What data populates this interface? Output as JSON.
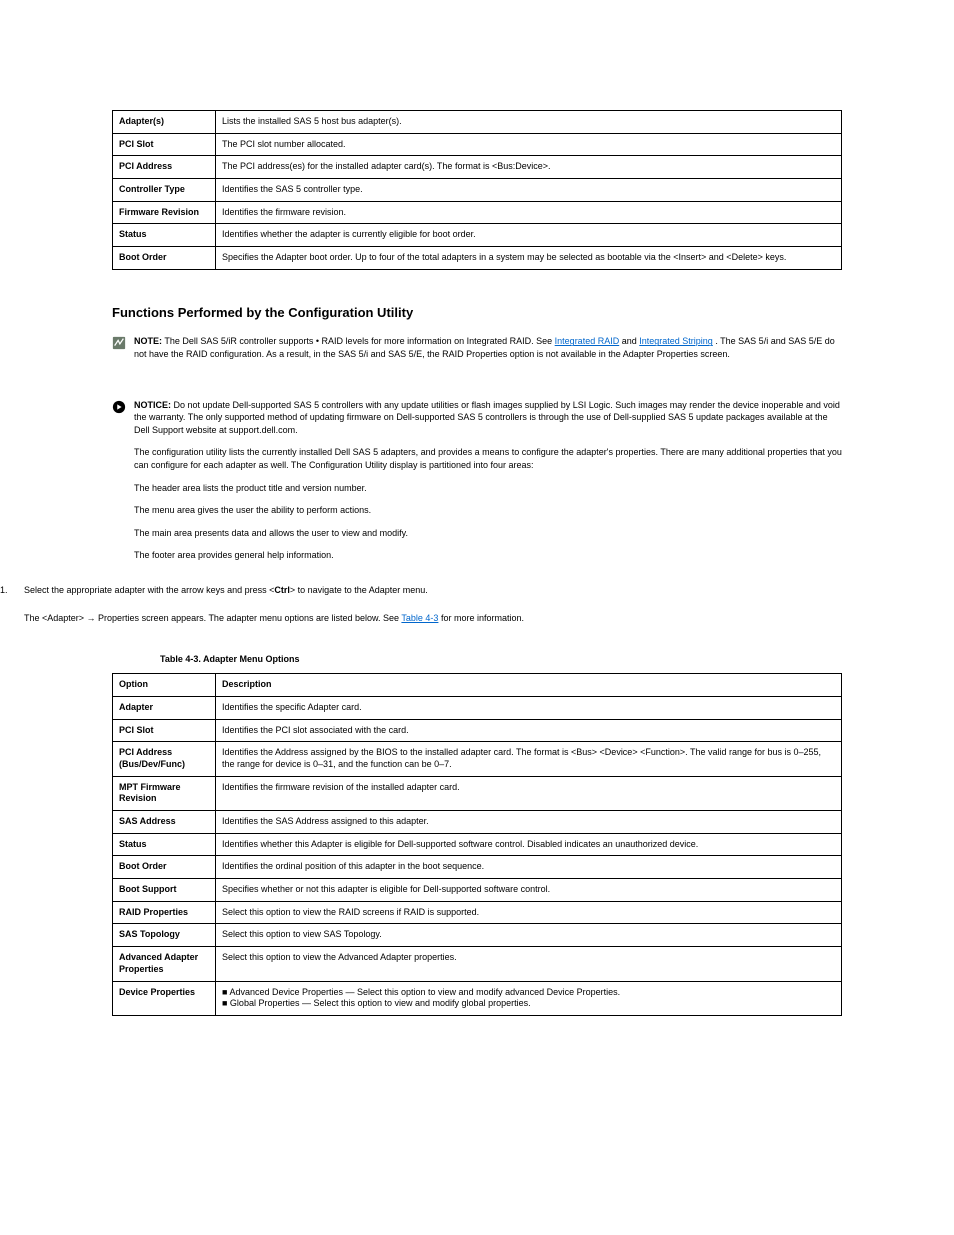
{
  "colors": {
    "link": "#0066cc",
    "text": "#000000",
    "border": "#000000",
    "background": "#ffffff"
  },
  "top_table": {
    "rows": [
      {
        "left": "Adapter(s)",
        "right": "Lists the installed SAS 5 host bus adapter(s)."
      },
      {
        "left": "PCI Slot",
        "right": "The PCI slot number allocated."
      },
      {
        "left": "PCI Address",
        "right": "The PCI address(es) for the installed adapter card(s). The format is <Bus:Device>."
      },
      {
        "left": "Controller Type",
        "right": "Identifies the SAS 5 controller type."
      },
      {
        "left": "Firmware Revision",
        "right": "Identifies the firmware revision."
      },
      {
        "left": "Status",
        "right": "Identifies whether the adapter is currently eligible for boot order."
      },
      {
        "left": "Boot Order",
        "right": "Specifies the Adapter boot order. Up to four of the total adapters in a system may be selected as bootable via the <Insert> and <Delete> keys."
      }
    ]
  },
  "functions_heading": "Functions Performed by the Configuration Utility",
  "note": {
    "prefix": "NOTE:",
    "before_links": "The Dell SAS 5/iR controller supports • RAID levels for more information on Integrated RAID. See ",
    "link1": "Integrated RAID",
    "mid": " and ",
    "link2": "Integrated Striping",
    "after_links": ". The SAS 5/i and SAS 5/E do not have the RAID configuration. As a result, in the SAS 5/i and SAS 5/E, the RAID Properties option is not available in the Adapter Properties screen."
  },
  "notice_label": "NOTICE:",
  "notice_lines": [
    "Do not update Dell-supported SAS 5 controllers with any update utilities or flash images supplied by LSI Logic. Such images may render the device inoperable and void the warranty. The only supported method of updating firmware on Dell-supported SAS 5 controllers is through the use of Dell-supplied SAS 5 update packages available at the Dell Support website at support.dell.com.",
    "The configuration utility lists the currently installed Dell SAS 5 adapters, and provides a means to configure the adapter's properties. There are many additional properties that you can configure for each adapter as well. The Configuration Utility display is partitioned into four areas:",
    "The header area lists the product title and version number.",
    "The menu area gives the user the ability to perform actions.",
    "The main area presents data and allows the user to view and modify.",
    "The footer area provides general help information."
  ],
  "ol": [
    {
      "n": "1.",
      "text_before": "Select the appropriate adapter with the arrow keys and press <",
      "key": "Ctrl",
      "text_after": "> to navigate to the Adapter menu."
    }
  ],
  "after_ol": {
    "before_link": "The <Adapter> → Properties screen appears. The adapter menu options are listed below. See ",
    "link": "Table 4-3",
    "after_link": " for more information."
  },
  "table_caption": "Table 4-3. Adapter Menu Options",
  "adapter_table": {
    "head_left": "Option",
    "head_right": "Description",
    "rows": [
      {
        "left": "Adapter",
        "right": "Identifies the specific Adapter card."
      },
      {
        "left": "PCI Slot",
        "right": "Identifies the PCI slot associated with the card."
      },
      {
        "left": "PCI Address (Bus/Dev/Func)",
        "right": "Identifies the Address assigned by the BIOS to the installed adapter card. The format is <Bus> <Device> <Function>. The valid range for bus is 0–255, the range for device is 0–31, and the function can be 0–7."
      },
      {
        "left": "MPT Firmware Revision",
        "right": "Identifies the firmware revision of the installed adapter card."
      },
      {
        "left": "SAS Address",
        "right": "Identifies the SAS Address assigned to this adapter."
      },
      {
        "left": "Status",
        "right": "Identifies whether this Adapter is eligible for Dell-supported software control. Disabled indicates an unauthorized device."
      },
      {
        "left": "Boot Order",
        "right": "Identifies the ordinal position of this adapter in the boot sequence."
      },
      {
        "left": "Boot Support",
        "right": "Specifies whether or not this adapter is eligible for Dell-supported software control."
      },
      {
        "left": "RAID Properties",
        "right": "Select this option to view the RAID screens if RAID is supported."
      },
      {
        "left": "SAS Topology",
        "right": "Select this option to view SAS Topology."
      },
      {
        "left": "Advanced Adapter Properties",
        "right": "Select this option to view the Advanced Adapter properties."
      },
      {
        "left": "Device Properties",
        "right": "■ Advanced Device Properties — Select this option to view and modify advanced Device Properties.\n■ Global Properties — Select this option to view and modify global properties."
      }
    ]
  }
}
